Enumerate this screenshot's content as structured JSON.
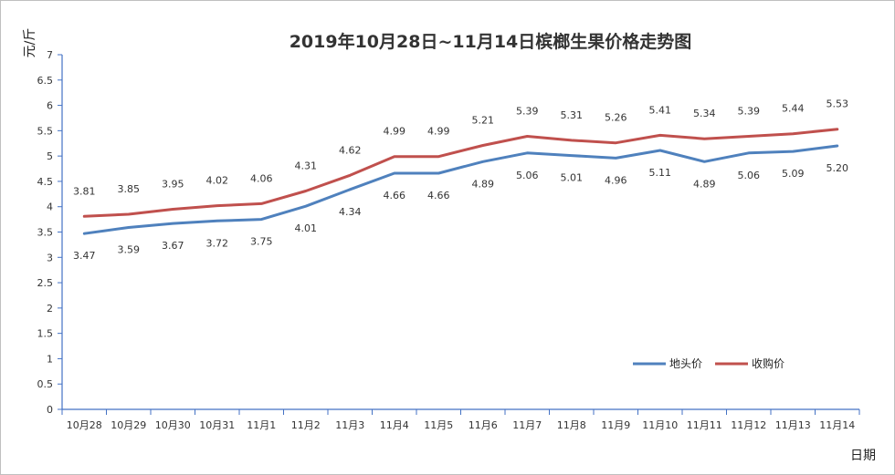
{
  "chart_data": {
    "type": "line",
    "title": "2019年10月28日~11月14日槟榔生果价格走势图",
    "xlabel": "日期",
    "ylabel": "元/斤",
    "ylim": [
      0,
      7
    ],
    "yticks": [
      "0",
      "0.5",
      "1",
      "1.5",
      "2",
      "2.5",
      "3",
      "3.5",
      "4",
      "4.5",
      "5",
      "5.5",
      "6",
      "6.5",
      "7"
    ],
    "grid": false,
    "legend_position": "bottom-right",
    "categories": [
      "10月28",
      "10月29",
      "10月30",
      "10月31",
      "11月1",
      "11月2",
      "11月3",
      "11月4",
      "11月5",
      "11月6",
      "11月7",
      "11月8",
      "11月9",
      "11月10",
      "11月11",
      "11月12",
      "11月13",
      "11月14"
    ],
    "series": [
      {
        "name": "地头价",
        "color": "#4f81bd",
        "values": [
          3.47,
          3.59,
          3.67,
          3.72,
          3.75,
          4.01,
          4.34,
          4.66,
          4.66,
          4.89,
          5.06,
          5.01,
          4.96,
          5.11,
          4.89,
          5.06,
          5.09,
          5.2
        ],
        "labels": [
          "3.47",
          "3.59",
          "3.67",
          "3.72",
          "3.75",
          "4.01",
          "4.34",
          "4.66",
          "4.66",
          "4.89",
          "5.06",
          "5.01",
          "4.96",
          "5.11",
          "4.89",
          "5.06",
          "5.09",
          "5.20"
        ]
      },
      {
        "name": "收购价",
        "color": "#c0504d",
        "values": [
          3.81,
          3.85,
          3.95,
          4.02,
          4.06,
          4.31,
          4.62,
          4.99,
          4.99,
          5.21,
          5.39,
          5.31,
          5.26,
          5.41,
          5.34,
          5.39,
          5.44,
          5.53
        ],
        "labels": [
          "3.81",
          "3.85",
          "3.95",
          "4.02",
          "4.06",
          "4.31",
          "4.62",
          "4.99",
          "4.99",
          "5.21",
          "5.39",
          "5.31",
          "5.26",
          "5.41",
          "5.34",
          "5.39",
          "5.44",
          "5.53"
        ]
      }
    ]
  }
}
